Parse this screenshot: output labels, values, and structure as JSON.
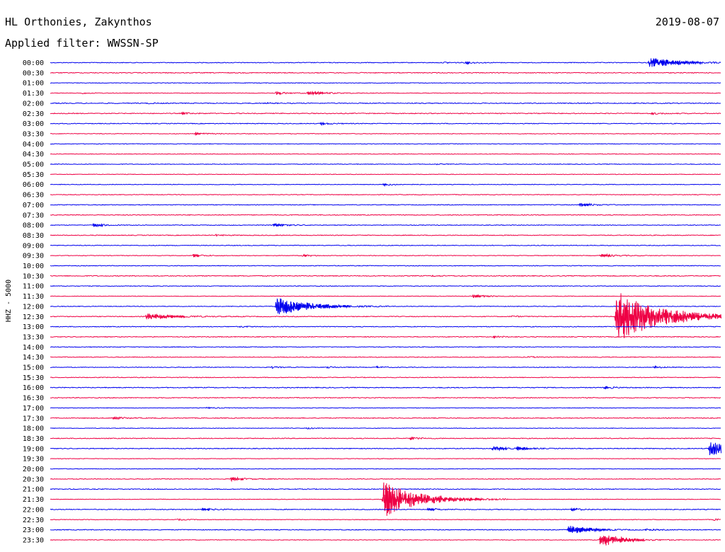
{
  "header": {
    "station": "HL Orthonies, Zakynthos",
    "date": "2019-08-07",
    "filter": "Applied filter: WWSSN-SP"
  },
  "chart_data": {
    "type": "line",
    "ylabel": "HHZ - 5000",
    "colors": {
      "even": "#0000ee",
      "odd": "#ee0044"
    },
    "rows": [
      "00:00",
      "00:30",
      "01:00",
      "01:30",
      "02:00",
      "02:30",
      "03:00",
      "03:30",
      "04:00",
      "04:30",
      "05:00",
      "05:30",
      "06:00",
      "06:30",
      "07:00",
      "07:30",
      "08:00",
      "08:30",
      "09:00",
      "09:30",
      "10:00",
      "10:30",
      "11:00",
      "11:30",
      "12:00",
      "12:30",
      "13:00",
      "13:30",
      "14:00",
      "14:30",
      "15:00",
      "15:30",
      "16:00",
      "16:30",
      "17:00",
      "17:30",
      "18:00",
      "18:30",
      "19:00",
      "19:30",
      "20:00",
      "20:30",
      "21:00",
      "21:30",
      "22:00",
      "22:30",
      "23:00",
      "23:30"
    ],
    "trace_minutes": 30,
    "events": [
      {
        "row": 0,
        "minute": 26.8,
        "amp": 1.6,
        "dur": 1.2
      },
      {
        "row": 0,
        "minute": 17.6,
        "amp": 0.2,
        "dur": 0.5
      },
      {
        "row": 0,
        "minute": 18.6,
        "amp": 0.25,
        "dur": 0.5
      },
      {
        "row": 3,
        "minute": 1.4,
        "amp": 0.2,
        "dur": 0.4
      },
      {
        "row": 3,
        "minute": 10.1,
        "amp": 0.35,
        "dur": 0.6
      },
      {
        "row": 3,
        "minute": 11.5,
        "amp": 0.55,
        "dur": 0.8
      },
      {
        "row": 3,
        "minute": 19.3,
        "amp": 0.12,
        "dur": 0.3
      },
      {
        "row": 4,
        "minute": 4.4,
        "amp": 0.12,
        "dur": 0.3
      },
      {
        "row": 4,
        "minute": 9.7,
        "amp": 0.12,
        "dur": 0.3
      },
      {
        "row": 5,
        "minute": 5.9,
        "amp": 0.25,
        "dur": 0.4
      },
      {
        "row": 5,
        "minute": 26.9,
        "amp": 0.25,
        "dur": 0.5
      },
      {
        "row": 6,
        "minute": 12.1,
        "amp": 0.3,
        "dur": 0.5
      },
      {
        "row": 7,
        "minute": 6.5,
        "amp": 0.35,
        "dur": 0.5
      },
      {
        "row": 10,
        "minute": 17.2,
        "amp": 0.12,
        "dur": 0.3
      },
      {
        "row": 12,
        "minute": 14.9,
        "amp": 0.3,
        "dur": 0.6
      },
      {
        "row": 14,
        "minute": 23.7,
        "amp": 0.5,
        "dur": 0.6
      },
      {
        "row": 16,
        "minute": 1.9,
        "amp": 0.55,
        "dur": 0.5
      },
      {
        "row": 16,
        "minute": 10.0,
        "amp": 0.55,
        "dur": 0.5
      },
      {
        "row": 17,
        "minute": 7.4,
        "amp": 0.2,
        "dur": 0.4
      },
      {
        "row": 19,
        "minute": 6.4,
        "amp": 0.4,
        "dur": 0.5
      },
      {
        "row": 19,
        "minute": 11.3,
        "amp": 0.35,
        "dur": 0.4
      },
      {
        "row": 19,
        "minute": 24.6,
        "amp": 0.45,
        "dur": 0.7
      },
      {
        "row": 21,
        "minute": 17.1,
        "amp": 0.15,
        "dur": 0.4
      },
      {
        "row": 23,
        "minute": 18.9,
        "amp": 0.45,
        "dur": 0.6
      },
      {
        "row": 24,
        "minute": 10.1,
        "amp": 3.0,
        "dur": 1.3
      },
      {
        "row": 25,
        "minute": 4.3,
        "amp": 0.9,
        "dur": 1.2
      },
      {
        "row": 25,
        "minute": 20.6,
        "amp": 0.2,
        "dur": 0.4
      },
      {
        "row": 25,
        "minute": 25.3,
        "amp": 8.5,
        "dur": 1.8
      },
      {
        "row": 25,
        "minute": 28.0,
        "amp": 0.3,
        "dur": 0.6
      },
      {
        "row": 26,
        "minute": 8.5,
        "amp": 0.2,
        "dur": 0.4
      },
      {
        "row": 27,
        "minute": 19.8,
        "amp": 0.25,
        "dur": 0.5
      },
      {
        "row": 29,
        "minute": 21.4,
        "amp": 0.15,
        "dur": 0.5
      },
      {
        "row": 30,
        "minute": 9.9,
        "amp": 0.25,
        "dur": 0.4
      },
      {
        "row": 30,
        "minute": 12.4,
        "amp": 0.25,
        "dur": 0.4
      },
      {
        "row": 30,
        "minute": 14.6,
        "amp": 0.25,
        "dur": 0.4
      },
      {
        "row": 30,
        "minute": 27.0,
        "amp": 0.3,
        "dur": 0.4
      },
      {
        "row": 32,
        "minute": 24.8,
        "amp": 0.3,
        "dur": 0.5
      },
      {
        "row": 34,
        "minute": 7.0,
        "amp": 0.2,
        "dur": 0.5
      },
      {
        "row": 35,
        "minute": 2.8,
        "amp": 0.35,
        "dur": 0.5
      },
      {
        "row": 36,
        "minute": 11.5,
        "amp": 0.2,
        "dur": 0.4
      },
      {
        "row": 37,
        "minute": 16.1,
        "amp": 0.3,
        "dur": 0.5
      },
      {
        "row": 38,
        "minute": 19.8,
        "amp": 0.6,
        "dur": 0.6
      },
      {
        "row": 38,
        "minute": 20.9,
        "amp": 0.45,
        "dur": 0.5
      },
      {
        "row": 38,
        "minute": 29.5,
        "amp": 2.3,
        "dur": 1.0
      },
      {
        "row": 40,
        "minute": 6.5,
        "amp": 0.25,
        "dur": 0.4
      },
      {
        "row": 41,
        "minute": 8.1,
        "amp": 0.55,
        "dur": 0.6
      },
      {
        "row": 43,
        "minute": 14.9,
        "amp": 6.0,
        "dur": 1.4
      },
      {
        "row": 44,
        "minute": 6.8,
        "amp": 0.4,
        "dur": 0.5
      },
      {
        "row": 44,
        "minute": 16.9,
        "amp": 0.35,
        "dur": 0.5
      },
      {
        "row": 44,
        "minute": 23.3,
        "amp": 0.35,
        "dur": 0.5
      },
      {
        "row": 45,
        "minute": 5.7,
        "amp": 0.2,
        "dur": 0.4
      },
      {
        "row": 45,
        "minute": 29.7,
        "amp": 0.25,
        "dur": 0.4
      },
      {
        "row": 46,
        "minute": 23.2,
        "amp": 1.6,
        "dur": 0.8
      },
      {
        "row": 46,
        "minute": 26.6,
        "amp": 0.25,
        "dur": 0.5
      },
      {
        "row": 47,
        "minute": 24.6,
        "amp": 2.2,
        "dur": 0.9
      }
    ]
  }
}
